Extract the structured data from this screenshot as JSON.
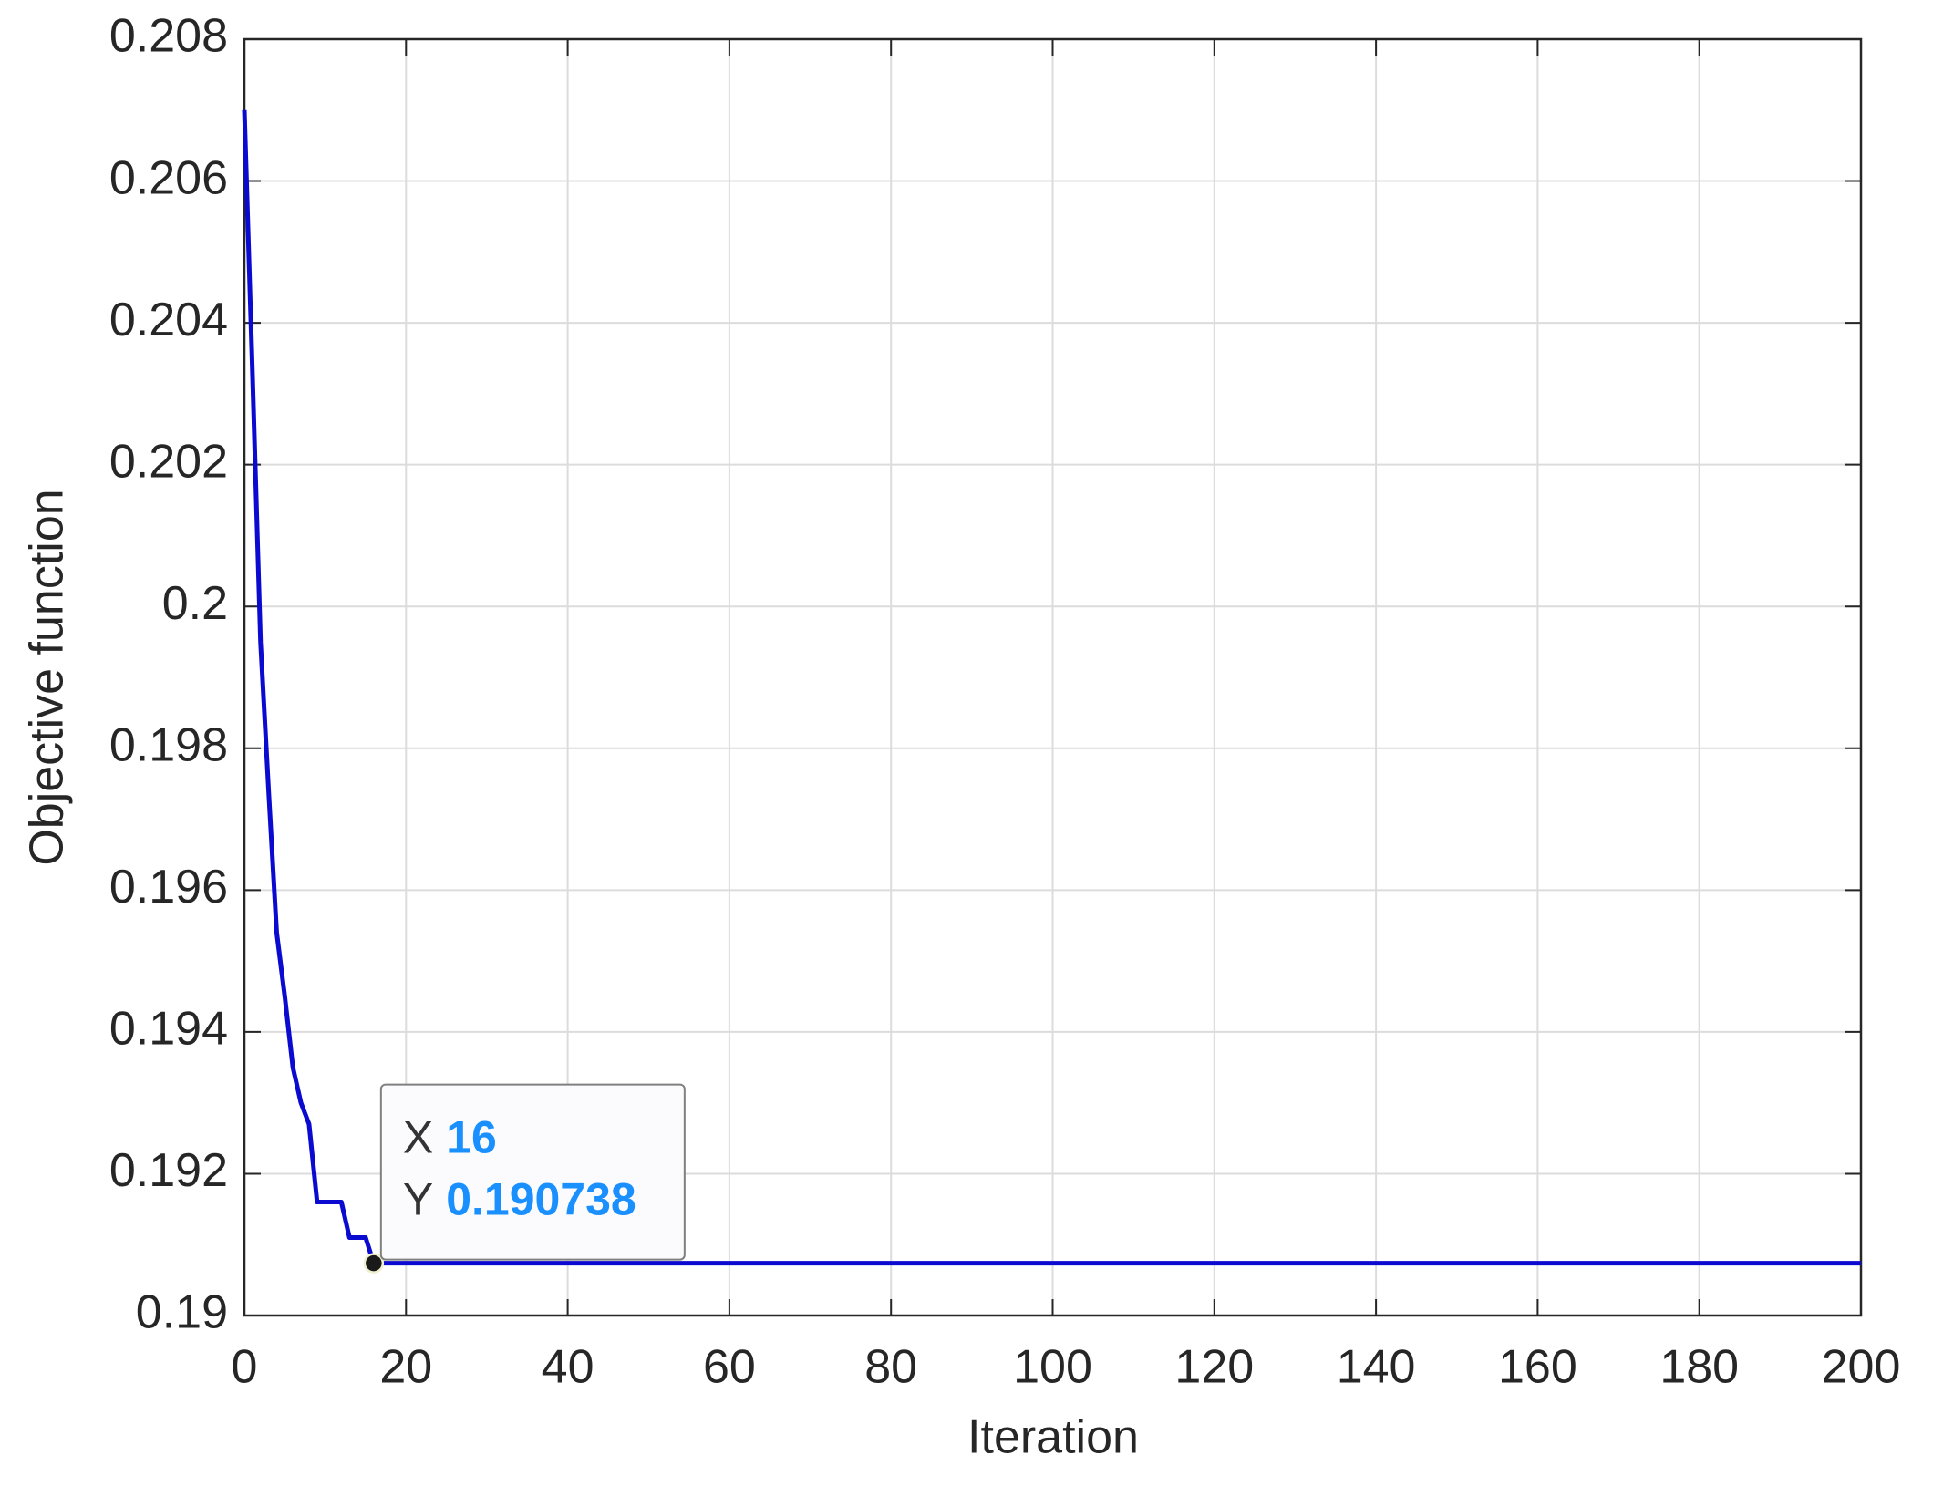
{
  "chart_data": {
    "type": "line",
    "x_label": "Iteration",
    "y_label": "Objective function",
    "x": [
      0,
      1,
      2,
      3,
      4,
      5,
      6,
      7,
      8,
      9,
      10,
      11,
      12,
      13,
      14,
      15,
      16,
      200
    ],
    "series": [
      {
        "color": "#0a0ad0",
        "values": [
          0.207,
          0.2033,
          0.1995,
          0.1974,
          0.1954,
          0.1945,
          0.1935,
          0.193,
          0.1927,
          0.1916,
          0.1916,
          0.1916,
          0.1916,
          0.1911,
          0.1911,
          0.1911,
          0.190738,
          0.190738
        ]
      }
    ],
    "xlim": [
      0,
      200
    ],
    "xticks": [
      0,
      20,
      40,
      60,
      80,
      100,
      120,
      140,
      160,
      180,
      200
    ],
    "ylim": [
      0.19,
      0.208
    ],
    "yticks": [
      0.19,
      0.192,
      0.194,
      0.196,
      0.198,
      0.2,
      0.202,
      0.204,
      0.206,
      0.208
    ],
    "grid": true,
    "datatip": {
      "x_label": "X",
      "x": 16,
      "y_label": "Y",
      "y": 0.190738
    }
  }
}
